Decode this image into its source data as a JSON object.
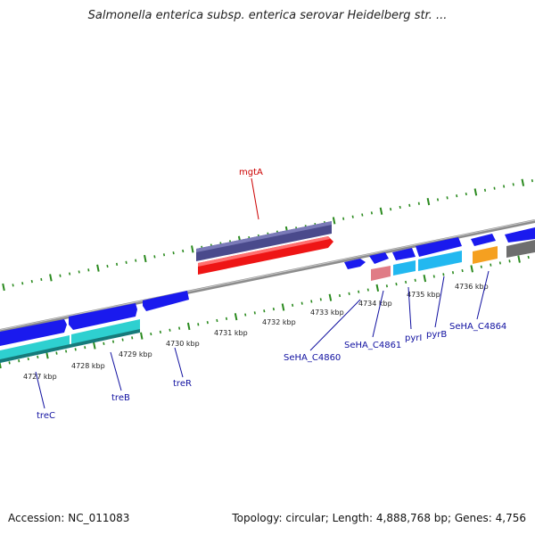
{
  "title": "Salmonella enterica subsp. enterica serovar Heidelberg str. ...",
  "footer": {
    "accession": "Accession: NC_011083",
    "summary": "Topology: circular; Length: 4,888,768 bp; Genes: 4,756"
  },
  "colors": {
    "backbone": "#8c8c8c",
    "tick": "#2a8a1e",
    "forward_cds": "#1a1aee",
    "reverse_cds": "#1a1aee",
    "rrna_like_teal": "#2ed0d0",
    "rna_light_blue": "#22b8f0",
    "orange_feature": "#f5a020",
    "grey_feature": "#6e6e6e",
    "pink_feature": "#e07c86",
    "mgtA_purple": "#4a4a8c",
    "mgtA_red": "#ee1515",
    "label_blue": "#1010a0",
    "label_red": "#cc0000"
  },
  "scale_labels": [
    "4727 kbp",
    "4728 kbp",
    "4729 kbp",
    "4730 kbp",
    "4731 kbp",
    "4732 kbp",
    "4733 kbp",
    "4734 kbp",
    "4735 kbp",
    "4736 kbp"
  ],
  "gene_labels": [
    {
      "name": "mgtA",
      "icon": "gene-label",
      "color": "red"
    },
    {
      "name": "treC",
      "color": "blue"
    },
    {
      "name": "treB",
      "color": "blue"
    },
    {
      "name": "treR",
      "color": "blue"
    },
    {
      "name": "SeHA_C4860",
      "color": "blue"
    },
    {
      "name": "SeHA_C4861",
      "color": "blue"
    },
    {
      "name": "pyrI",
      "color": "blue"
    },
    {
      "name": "pyrB",
      "color": "blue"
    },
    {
      "name": "SeHA_C4864",
      "color": "blue"
    }
  ]
}
